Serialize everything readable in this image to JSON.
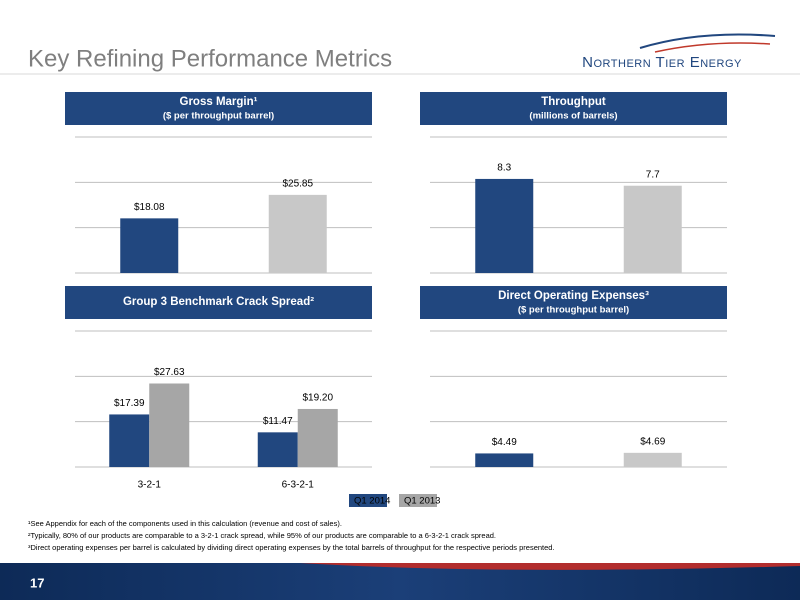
{
  "title": "Key Refining Performance Metrics",
  "logo": "Northern Tier Energy",
  "page_number": "17",
  "footnotes": [
    "¹See Appendix for each of the components used in this calculation (revenue and cost of sales).",
    "²Typically, 80% of our products are comparable to a 3-2-1 crack spread, while 95% of our products are comparable to a 6-3-2-1 crack spread.",
    "³Direct operating expenses per barrel is calculated by dividing direct operating expenses by the total barrels of throughput for the respective periods presented."
  ],
  "chart_data": [
    {
      "type": "bar",
      "title": "Gross Margin¹",
      "subtitle": "($ per throughput barrel)",
      "values": [
        18.08,
        25.85
      ],
      "value_labels": [
        "$18.08",
        "$25.85"
      ],
      "colors": [
        "#21477f",
        "#c8c8c8"
      ],
      "ylim": [
        0,
        45
      ],
      "yticks": [
        0,
        15,
        30,
        45
      ],
      "grid": true
    },
    {
      "type": "bar",
      "title": "Throughput",
      "subtitle": "(millions of barrels)",
      "values": [
        8.3,
        7.7
      ],
      "colors": [
        "#21477f",
        "#c8c8c8"
      ],
      "ylim": [
        0,
        12
      ],
      "yticks": [
        0,
        4,
        8,
        12
      ],
      "grid": true
    },
    {
      "type": "grouped-bar",
      "title": "Group 3 Benchmark Crack Spread²",
      "categories": [
        "3-2-1",
        "6-3-2-1"
      ],
      "series": [
        {
          "name": "Q1 2014",
          "color": "#21477f",
          "values": [
            17.39,
            11.47
          ],
          "value_labels": [
            "$17.39",
            "$11.47"
          ]
        },
        {
          "name": "Q1 2013",
          "color": "#a6a6a6",
          "values": [
            27.63,
            19.2
          ],
          "value_labels": [
            "$27.63",
            "$19.20"
          ]
        }
      ],
      "ylim": [
        0,
        45
      ],
      "yticks": [
        0,
        15,
        30,
        45
      ],
      "grid": true,
      "legend": "bottom"
    },
    {
      "type": "bar",
      "title": "Direct Operating Expenses³",
      "subtitle": "($ per throughput barrel)",
      "values": [
        4.49,
        4.69
      ],
      "value_labels": [
        "$4.49",
        "$4.69"
      ],
      "colors": [
        "#21477f",
        "#c8c8c8"
      ],
      "ylim": [
        0,
        45
      ],
      "yticks": [
        0,
        15,
        30,
        45
      ],
      "grid": true
    }
  ]
}
